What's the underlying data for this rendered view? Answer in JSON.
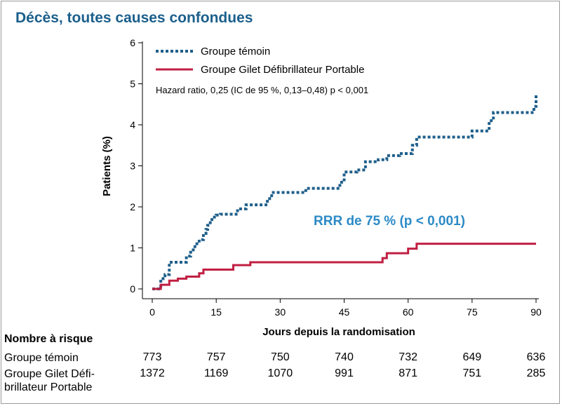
{
  "title": "Décès, toutes causes confondues",
  "chart_data": {
    "type": "line",
    "title": "Décès, toutes causes confondues",
    "xlabel": "Jours depuis la randomisation",
    "ylabel": "Patients (%)",
    "xlim": [
      0,
      90
    ],
    "ylim": [
      0,
      6
    ],
    "x_ticks": [
      0,
      15,
      30,
      45,
      60,
      75,
      90
    ],
    "y_ticks": [
      0,
      1,
      2,
      3,
      4,
      5,
      6
    ],
    "series": [
      {
        "name": "Groupe témoin",
        "style": "dotted",
        "color": "#1f5f8b",
        "x": [
          0,
          2,
          3,
          4,
          6,
          8,
          9,
          10,
          11,
          12,
          12.6,
          13,
          13.6,
          14,
          15,
          16,
          20,
          22,
          27,
          28,
          30,
          36,
          44,
          45,
          48,
          50,
          53,
          55,
          58,
          61,
          62,
          75,
          79,
          80,
          88,
          89.5,
          90
        ],
        "y": [
          0,
          0.25,
          0.35,
          0.65,
          0.65,
          0.8,
          0.95,
          1.1,
          1.2,
          1.35,
          1.45,
          1.55,
          1.65,
          1.75,
          1.8,
          1.82,
          1.95,
          2.05,
          2.2,
          2.35,
          2.35,
          2.45,
          2.6,
          2.85,
          2.9,
          3.1,
          3.15,
          3.25,
          3.3,
          3.5,
          3.7,
          3.85,
          4.1,
          4.3,
          4.3,
          4.45,
          4.75
        ]
      },
      {
        "name": "Groupe Gilet Défibrillateur Portable",
        "style": "solid",
        "color": "#c01f42",
        "x": [
          0,
          2,
          4,
          6,
          8,
          11,
          12,
          19,
          23,
          45,
          54,
          55,
          60,
          62,
          90
        ],
        "y": [
          0,
          0.1,
          0.2,
          0.25,
          0.3,
          0.38,
          0.47,
          0.58,
          0.65,
          0.65,
          0.75,
          0.87,
          0.98,
          1.1,
          1.1
        ]
      }
    ],
    "legend": [
      "Groupe témoin",
      "Groupe Gilet Défibrillateur Portable"
    ],
    "annotations": {
      "hazard_ratio": "Hazard ratio, 0,25 (IC de 95 %, 0,13–0,48) p < 0,001",
      "rrr": "RRR de 75 % (p < 0,001)"
    }
  },
  "risk_table": {
    "heading": "Nombre à risque",
    "rows": [
      {
        "label_lines": [
          "Groupe témoin"
        ],
        "values": [
          "773",
          "757",
          "750",
          "740",
          "732",
          "649",
          "636"
        ]
      },
      {
        "label_lines": [
          "Groupe Gilet Défi-",
          "brillateur Portable"
        ],
        "values": [
          "1372",
          "1169",
          "1070",
          "991",
          "871",
          "751",
          "285"
        ]
      }
    ]
  }
}
